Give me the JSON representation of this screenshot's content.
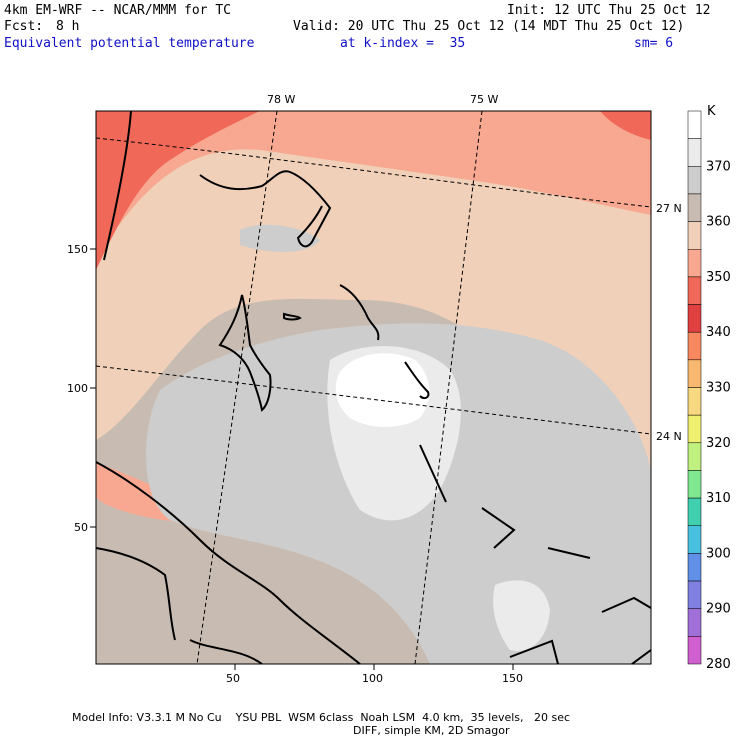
{
  "header": {
    "model": "4km EM-WRF -- NCAR/MMM for TC",
    "init": "Init: 12 UTC Thu 25 Oct 12",
    "fcst_label": "Fcst:",
    "fcst_value": "8 h",
    "valid": "Valid: 20 UTC Thu 25 Oct 12 (14 MDT Thu 25 Oct 12)",
    "field_name": "Equivalent potential temperature",
    "level": "at k-index =  35",
    "smoothing": "sm= 6"
  },
  "map": {
    "lon_labels": [
      "78 W",
      "75 W"
    ],
    "lat_labels": [
      "27 N",
      "24 N"
    ],
    "x_ticks": [
      "50",
      "100",
      "150"
    ],
    "y_ticks": [
      "150",
      "100",
      "50"
    ]
  },
  "colorbar": {
    "unit": "K",
    "levels": [
      "370",
      "360",
      "350",
      "340",
      "330",
      "320",
      "310",
      "300",
      "290",
      "280"
    ],
    "colors": [
      "#ffffff",
      "#ebebeb",
      "#cdcdcd",
      "#c8bcb2",
      "#f0d0b8",
      "#f8a890",
      "#f06858",
      "#e04040",
      "#f88860",
      "#f8b870",
      "#f8d880",
      "#f0f070",
      "#c0f080",
      "#80e890",
      "#40d0b0",
      "#48c0e0",
      "#6090e8",
      "#8080e0",
      "#a070d8",
      "#d060d0"
    ]
  },
  "footer": {
    "line1": "Model Info: V3.3.1 M No Cu    YSU PBL  WSM 6class  Noah LSM  4.0 km,  35 levels,   20 sec",
    "line2": "DIFF, simple KM, 2D Smagor"
  }
}
